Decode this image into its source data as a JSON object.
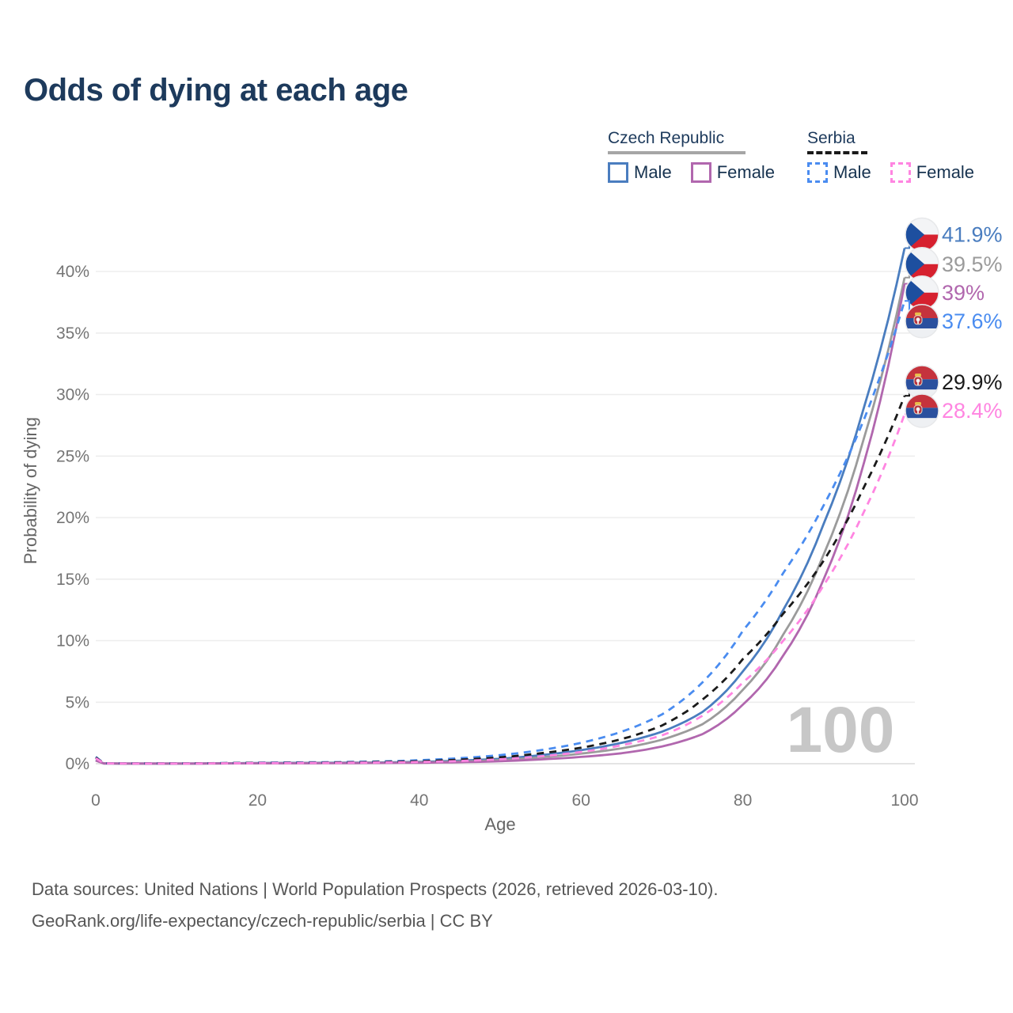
{
  "title": "Odds of dying at each age",
  "legend": {
    "groups": [
      {
        "name": "Czech Republic",
        "line_style": "solid",
        "underline_color": "#a6a6a6",
        "items": [
          {
            "label": "Male",
            "color": "#4a7dbf"
          },
          {
            "label": "Female",
            "color": "#b167ae"
          }
        ]
      },
      {
        "name": "Serbia",
        "line_style": "dashed",
        "underline_color": "#1a1a1a",
        "items": [
          {
            "label": "Male",
            "color": "#4a8cf0"
          },
          {
            "label": "Female",
            "color": "#ff85e1"
          }
        ]
      }
    ]
  },
  "chart_data": {
    "type": "line",
    "title": "Odds of dying at each age",
    "xlabel": "Age",
    "ylabel": "Probability of dying",
    "xlim": [
      0,
      100
    ],
    "ylim": [
      0,
      43
    ],
    "xticks": [
      0,
      20,
      40,
      60,
      80,
      100
    ],
    "ytick_labels": [
      "0%",
      "5%",
      "10%",
      "15%",
      "20%",
      "25%",
      "30%",
      "35%",
      "40%"
    ],
    "grid": "horizontal",
    "legend_position": "top-right",
    "watermark": "100",
    "x": [
      0,
      1,
      5,
      10,
      15,
      20,
      25,
      30,
      35,
      40,
      45,
      50,
      55,
      60,
      65,
      70,
      75,
      80,
      85,
      90,
      95,
      100
    ],
    "unit": "percent",
    "series": [
      {
        "name": "Czech Republic male",
        "country": "Czech Republic",
        "sex": "male",
        "style": "solid",
        "color": "#4a7dbf",
        "end_label": "41.9%",
        "flag": "czech",
        "values": [
          0.3,
          0.02,
          0.01,
          0.01,
          0.03,
          0.06,
          0.07,
          0.08,
          0.1,
          0.15,
          0.25,
          0.4,
          0.7,
          1.1,
          1.7,
          2.6,
          4.2,
          7.5,
          12.5,
          19.5,
          29.0,
          41.9
        ]
      },
      {
        "name": "Czech Republic both sexes",
        "country": "Czech Republic",
        "sex": "both",
        "style": "solid",
        "color": "#9b9b9b",
        "end_label": "39.5%",
        "flag": "czech",
        "values": [
          0.27,
          0.02,
          0.01,
          0.01,
          0.02,
          0.04,
          0.05,
          0.06,
          0.08,
          0.11,
          0.18,
          0.3,
          0.52,
          0.82,
          1.25,
          1.95,
          3.2,
          6.0,
          10.5,
          17.0,
          26.5,
          39.5
        ]
      },
      {
        "name": "Czech Republic female",
        "country": "Czech Republic",
        "sex": "female",
        "style": "solid",
        "color": "#b167ae",
        "end_label": "39%",
        "flag": "czech",
        "values": [
          0.25,
          0.02,
          0.01,
          0.01,
          0.02,
          0.03,
          0.03,
          0.04,
          0.06,
          0.08,
          0.12,
          0.2,
          0.35,
          0.55,
          0.85,
          1.4,
          2.4,
          4.8,
          8.8,
          15.0,
          24.5,
          39.0
        ]
      },
      {
        "name": "Serbia male",
        "country": "Serbia",
        "sex": "male",
        "style": "dashed",
        "color": "#4a8cf0",
        "end_label": "37.6%",
        "flag": "serbia",
        "values": [
          0.55,
          0.04,
          0.02,
          0.02,
          0.05,
          0.09,
          0.11,
          0.13,
          0.18,
          0.28,
          0.45,
          0.7,
          1.1,
          1.7,
          2.6,
          4.0,
          6.6,
          10.8,
          15.5,
          21.0,
          28.0,
          37.6
        ]
      },
      {
        "name": "Serbia both sexes",
        "country": "Serbia",
        "sex": "both",
        "style": "dashed",
        "color": "#1a1a1a",
        "end_label": "29.9%",
        "flag": "serbia",
        "values": [
          0.5,
          0.03,
          0.02,
          0.02,
          0.04,
          0.07,
          0.08,
          0.1,
          0.14,
          0.2,
          0.33,
          0.52,
          0.85,
          1.3,
          2.0,
          3.1,
          5.2,
          8.5,
          12.2,
          16.5,
          22.5,
          29.9
        ]
      },
      {
        "name": "Serbia female",
        "country": "Serbia",
        "sex": "female",
        "style": "dashed",
        "color": "#ff85e1",
        "end_label": "28.4%",
        "flag": "serbia",
        "values": [
          0.45,
          0.03,
          0.01,
          0.01,
          0.03,
          0.05,
          0.06,
          0.07,
          0.1,
          0.14,
          0.22,
          0.36,
          0.6,
          0.95,
          1.5,
          2.3,
          3.9,
          6.6,
          10.0,
          14.5,
          20.5,
          28.4
        ]
      }
    ],
    "colors": {
      "grid": "#ededed",
      "axis_text": "#757575",
      "watermark": "#c7c7c7",
      "czech_flag_blue": "#1d4f9f",
      "czech_flag_red": "#d6212f",
      "serbia_flag_red": "#c5333d",
      "serbia_flag_blue": "#2a509e"
    }
  },
  "footer": {
    "line1": "Data sources: United Nations | World Population Prospects (2026, retrieved 2026-03-10).",
    "line2": "GeoRank.org/life-expectancy/czech-republic/serbia | CC BY"
  }
}
